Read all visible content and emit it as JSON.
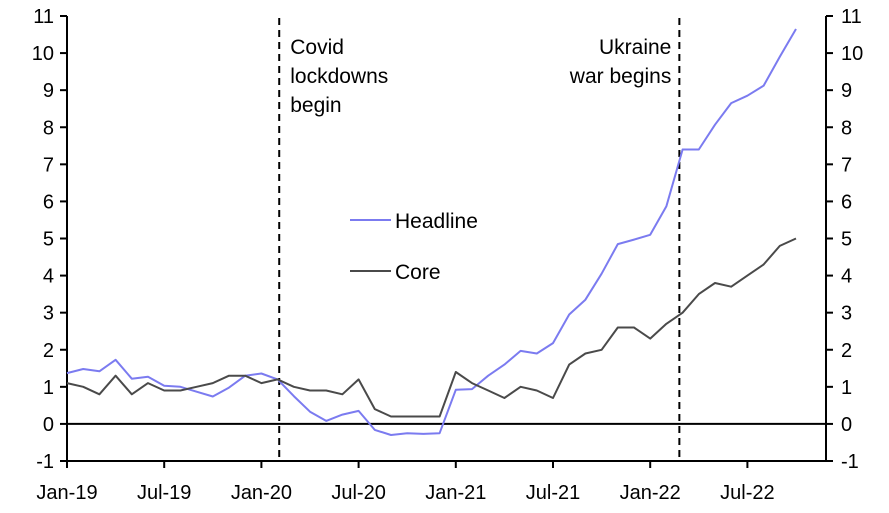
{
  "chart_data": {
    "type": "line",
    "title": "",
    "xlabel": "",
    "ylabel": "",
    "ylim": [
      -1,
      11
    ],
    "yticks": [
      -1,
      0,
      1,
      2,
      3,
      4,
      5,
      6,
      7,
      8,
      9,
      10,
      11
    ],
    "ytick_labels": [
      "-1",
      "0",
      "1",
      "2",
      "3",
      "4",
      "5",
      "6",
      "7",
      "8",
      "9",
      "10",
      "11"
    ],
    "x_start": "Jan-19",
    "x_months": 46,
    "xticks": [
      0,
      6,
      12,
      18,
      24,
      30,
      36,
      42
    ],
    "xtick_labels": [
      "Jan-19",
      "Jul-19",
      "Jan-20",
      "Jul-20",
      "Jan-21",
      "Jul-21",
      "Jan-22",
      "Jul-22"
    ],
    "grid": false,
    "legend_position": "center",
    "series": [
      {
        "name": "Headline",
        "color": "#7B7BF0",
        "values": [
          1.37,
          1.48,
          1.42,
          1.73,
          1.22,
          1.27,
          1.03,
          1.0,
          0.87,
          0.74,
          0.98,
          1.3,
          1.36,
          1.2,
          0.75,
          0.33,
          0.08,
          0.25,
          0.35,
          -0.16,
          -0.3,
          -0.25,
          -0.27,
          -0.25,
          0.92,
          0.94,
          1.3,
          1.6,
          1.97,
          1.9,
          2.18,
          2.95,
          3.35,
          4.05,
          4.85,
          4.97,
          5.1,
          5.87,
          7.4,
          7.4,
          8.07,
          8.65,
          8.85,
          9.12,
          9.9,
          10.65
        ]
      },
      {
        "name": "Core",
        "color": "#4A4A4A",
        "values": [
          1.1,
          1.0,
          0.8,
          1.3,
          0.8,
          1.1,
          0.9,
          0.9,
          1.0,
          1.1,
          1.3,
          1.3,
          1.1,
          1.2,
          1.0,
          0.9,
          0.9,
          0.8,
          1.2,
          0.4,
          0.2,
          0.2,
          0.2,
          0.2,
          1.4,
          1.1,
          0.9,
          0.7,
          1.0,
          0.9,
          0.7,
          1.6,
          1.9,
          2.0,
          2.6,
          2.6,
          2.3,
          2.7,
          3.0,
          3.5,
          3.8,
          3.7,
          4.0,
          4.3,
          4.8,
          5.0
        ]
      }
    ],
    "annotations": [
      {
        "month_index": 13.1,
        "lines": [
          "Covid",
          "lockdowns",
          "begin"
        ],
        "align": "left"
      },
      {
        "month_index": 37.8,
        "lines": [
          "Ukraine",
          "war begins"
        ],
        "align": "right"
      }
    ]
  }
}
